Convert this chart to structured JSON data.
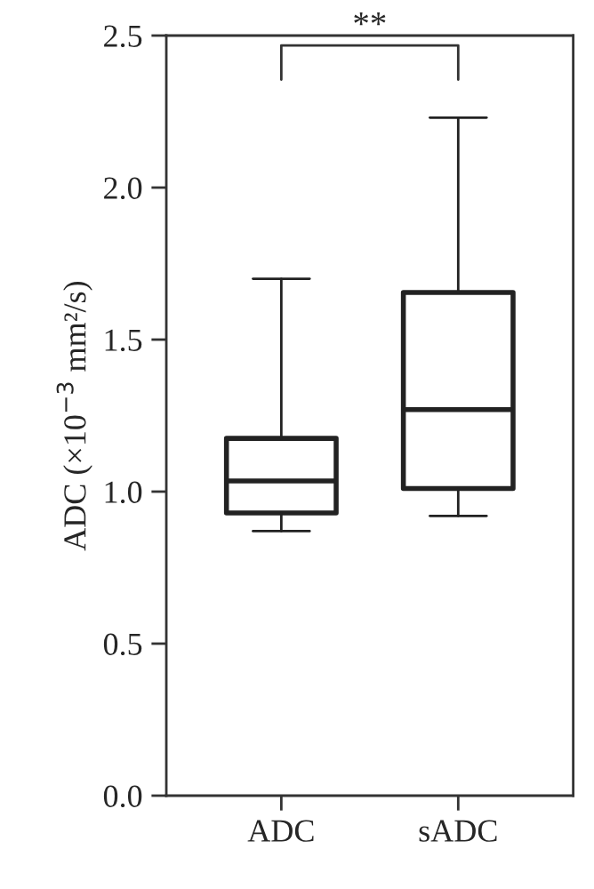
{
  "chart_data": {
    "type": "box",
    "categories": [
      "ADC",
      "sADC"
    ],
    "boxes": [
      {
        "low": 0.87,
        "q1": 0.93,
        "median": 1.035,
        "q3": 1.175,
        "high": 1.7
      },
      {
        "low": 0.92,
        "q1": 1.01,
        "median": 1.27,
        "q3": 1.655,
        "high": 2.23
      }
    ],
    "ylabel": "ADC (×10$^{−3}$ mm²/s)",
    "ylim": [
      0,
      2.5
    ],
    "yticks": [
      {
        "value": 0,
        "label": "0.0"
      },
      {
        "value": 0.5,
        "label": "0.5"
      },
      {
        "value": 1,
        "label": "1.0"
      },
      {
        "value": 1.5,
        "label": "1.5"
      },
      {
        "value": 2,
        "label": "2.0"
      },
      {
        "value": 2.5,
        "label": "2.5"
      }
    ],
    "annotations": [
      "**"
    ],
    "grid": false
  }
}
